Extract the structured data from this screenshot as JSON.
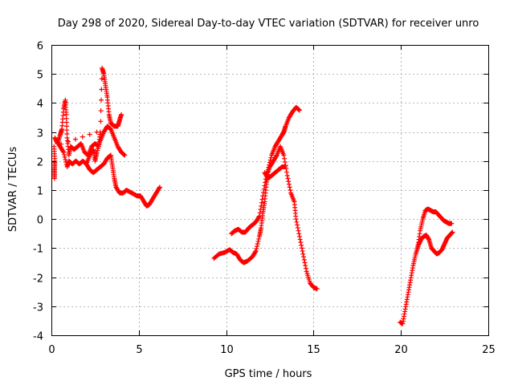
{
  "chart_data": {
    "type": "scatter",
    "title": "Day 298 of 2020, Sidereal Day-to-day VTEC variation (SDTVAR) for receiver unro",
    "xlabel": "GPS time / hours",
    "ylabel": "SDTVAR / TECUs",
    "xlim": [
      0,
      25
    ],
    "ylim": [
      -4,
      6
    ],
    "xticks": [
      0,
      5,
      10,
      15,
      20,
      25
    ],
    "yticks": [
      -4,
      -3,
      -2,
      -1,
      0,
      1,
      2,
      3,
      4,
      5,
      6
    ],
    "xtick_labels": [
      "0",
      "5",
      "10",
      "15",
      "20",
      "25"
    ],
    "ytick_labels": [
      "-4",
      "-3",
      "-2",
      "-1",
      "0",
      "1",
      "2",
      "3",
      "4",
      "5",
      "6"
    ],
    "grid": true,
    "marker": "+",
    "color": "#ff0000",
    "series": [
      {
        "name": "SDTVAR",
        "segments": [
          [
            [
              0.2,
              2.8
            ],
            [
              0.35,
              2.6
            ],
            [
              0.5,
              2.9
            ],
            [
              0.6,
              3.1
            ],
            [
              0.7,
              3.8
            ],
            [
              0.8,
              4.1
            ],
            [
              0.85,
              3.6
            ],
            [
              0.9,
              2.8
            ],
            [
              1.0,
              2.2
            ],
            [
              1.1,
              2.5
            ],
            [
              1.3,
              2.4
            ],
            [
              1.5,
              2.5
            ],
            [
              1.7,
              2.6
            ],
            [
              1.9,
              2.3
            ],
            [
              2.1,
              2.2
            ],
            [
              2.3,
              2.5
            ],
            [
              2.5,
              2.6
            ],
            [
              2.7,
              2.5
            ],
            [
              2.8,
              3.0
            ],
            [
              2.9,
              5.2
            ],
            [
              3.0,
              5.0
            ],
            [
              3.1,
              4.6
            ],
            [
              3.2,
              4.2
            ],
            [
              3.3,
              3.6
            ],
            [
              3.4,
              3.3
            ],
            [
              3.6,
              3.2
            ],
            [
              3.8,
              3.2
            ],
            [
              3.9,
              3.4
            ],
            [
              4.0,
              3.6
            ]
          ],
          [
            [
              0.3,
              2.7
            ],
            [
              0.5,
              2.5
            ],
            [
              0.7,
              2.3
            ],
            [
              0.9,
              1.8
            ],
            [
              1.0,
              2.0
            ],
            [
              1.2,
              1.9
            ],
            [
              1.4,
              2.0
            ],
            [
              1.6,
              1.9
            ],
            [
              1.8,
              2.0
            ],
            [
              2.0,
              1.9
            ],
            [
              2.2,
              2.2
            ],
            [
              2.4,
              2.4
            ],
            [
              2.5,
              2.0
            ],
            [
              2.6,
              2.3
            ],
            [
              2.8,
              2.7
            ],
            [
              3.0,
              3.0
            ],
            [
              3.2,
              3.2
            ],
            [
              3.4,
              3.1
            ],
            [
              3.6,
              2.8
            ],
            [
              3.8,
              2.5
            ],
            [
              4.0,
              2.3
            ],
            [
              4.2,
              2.2
            ]
          ],
          [
            [
              2.0,
              1.9
            ],
            [
              2.2,
              1.7
            ],
            [
              2.4,
              1.6
            ],
            [
              2.6,
              1.7
            ],
            [
              2.8,
              1.8
            ],
            [
              3.0,
              1.9
            ],
            [
              3.2,
              2.1
            ],
            [
              3.4,
              2.2
            ],
            [
              3.5,
              1.8
            ],
            [
              3.6,
              1.4
            ],
            [
              3.7,
              1.1
            ],
            [
              3.9,
              0.9
            ],
            [
              4.1,
              0.9
            ],
            [
              4.3,
              1.0
            ],
            [
              4.6,
              0.9
            ],
            [
              4.9,
              0.8
            ],
            [
              5.1,
              0.8
            ],
            [
              5.3,
              0.6
            ],
            [
              5.45,
              0.45
            ],
            [
              5.6,
              0.5
            ],
            [
              5.8,
              0.7
            ],
            [
              6.0,
              0.9
            ],
            [
              6.2,
              1.1
            ]
          ],
          [
            [
              9.3,
              -1.35
            ],
            [
              9.6,
              -1.2
            ],
            [
              9.9,
              -1.15
            ],
            [
              10.2,
              -1.05
            ],
            [
              10.4,
              -1.15
            ],
            [
              10.6,
              -1.2
            ],
            [
              10.8,
              -1.4
            ],
            [
              11.0,
              -1.5
            ],
            [
              11.2,
              -1.45
            ],
            [
              11.5,
              -1.3
            ],
            [
              11.7,
              -1.1
            ],
            [
              11.9,
              -0.6
            ],
            [
              12.0,
              -0.3
            ],
            [
              12.1,
              0.2
            ],
            [
              12.2,
              0.6
            ],
            [
              12.3,
              1.2
            ],
            [
              12.4,
              1.7
            ],
            [
              12.6,
              2.2
            ],
            [
              12.8,
              2.5
            ],
            [
              13.0,
              2.7
            ],
            [
              13.2,
              2.9
            ],
            [
              13.3,
              3.0
            ],
            [
              13.4,
              3.2
            ],
            [
              13.6,
              3.5
            ],
            [
              13.8,
              3.7
            ],
            [
              14.0,
              3.85
            ],
            [
              14.2,
              3.75
            ]
          ],
          [
            [
              10.3,
              -0.5
            ],
            [
              10.5,
              -0.4
            ],
            [
              10.7,
              -0.35
            ],
            [
              10.9,
              -0.45
            ],
            [
              11.1,
              -0.45
            ],
            [
              11.3,
              -0.3
            ],
            [
              11.5,
              -0.2
            ],
            [
              11.7,
              -0.1
            ],
            [
              11.9,
              0.1
            ],
            [
              12.1,
              0.8
            ],
            [
              12.3,
              1.5
            ],
            [
              12.5,
              1.8
            ],
            [
              12.7,
              2.0
            ],
            [
              12.9,
              2.2
            ],
            [
              13.1,
              2.5
            ],
            [
              13.3,
              2.2
            ],
            [
              13.5,
              1.5
            ],
            [
              13.7,
              0.9
            ],
            [
              13.9,
              0.6
            ],
            [
              14.0,
              0.0
            ],
            [
              14.2,
              -0.6
            ],
            [
              14.4,
              -1.2
            ],
            [
              14.6,
              -1.8
            ],
            [
              14.8,
              -2.2
            ],
            [
              15.0,
              -2.35
            ],
            [
              15.2,
              -2.4
            ]
          ],
          [
            [
              12.2,
              1.6
            ],
            [
              12.4,
              1.4
            ],
            [
              12.6,
              1.5
            ],
            [
              12.8,
              1.6
            ],
            [
              13.0,
              1.7
            ],
            [
              13.2,
              1.8
            ],
            [
              13.4,
              1.8
            ]
          ],
          [
            [
              19.95,
              -3.55
            ],
            [
              20.1,
              -3.6
            ],
            [
              20.25,
              -3.1
            ],
            [
              20.4,
              -2.6
            ],
            [
              20.55,
              -2.1
            ],
            [
              20.7,
              -1.6
            ],
            [
              20.85,
              -1.2
            ],
            [
              21.0,
              -0.9
            ],
            [
              21.15,
              -0.7
            ],
            [
              21.3,
              -0.6
            ],
            [
              21.45,
              -0.55
            ],
            [
              21.6,
              -0.7
            ],
            [
              21.75,
              -1.0
            ],
            [
              21.9,
              -1.1
            ],
            [
              22.05,
              -1.2
            ],
            [
              22.2,
              -1.15
            ],
            [
              22.35,
              -1.05
            ],
            [
              22.5,
              -0.85
            ],
            [
              22.65,
              -0.65
            ],
            [
              22.8,
              -0.55
            ],
            [
              22.95,
              -0.45
            ]
          ],
          [
            [
              20.95,
              -1.0
            ],
            [
              21.1,
              -0.4
            ],
            [
              21.25,
              0.0
            ],
            [
              21.4,
              0.3
            ],
            [
              21.55,
              0.35
            ],
            [
              21.7,
              0.3
            ],
            [
              21.85,
              0.25
            ],
            [
              22.0,
              0.25
            ],
            [
              22.15,
              0.15
            ],
            [
              22.3,
              0.05
            ],
            [
              22.45,
              -0.05
            ],
            [
              22.6,
              -0.1
            ],
            [
              22.75,
              -0.15
            ],
            [
              22.9,
              -0.15
            ]
          ],
          [
            [
              0.18,
              1.4
            ],
            [
              0.18,
              1.7
            ],
            [
              0.2,
              2.0
            ],
            [
              0.15,
              2.5
            ],
            [
              2.6,
              3.0
            ]
          ]
        ]
      }
    ]
  }
}
